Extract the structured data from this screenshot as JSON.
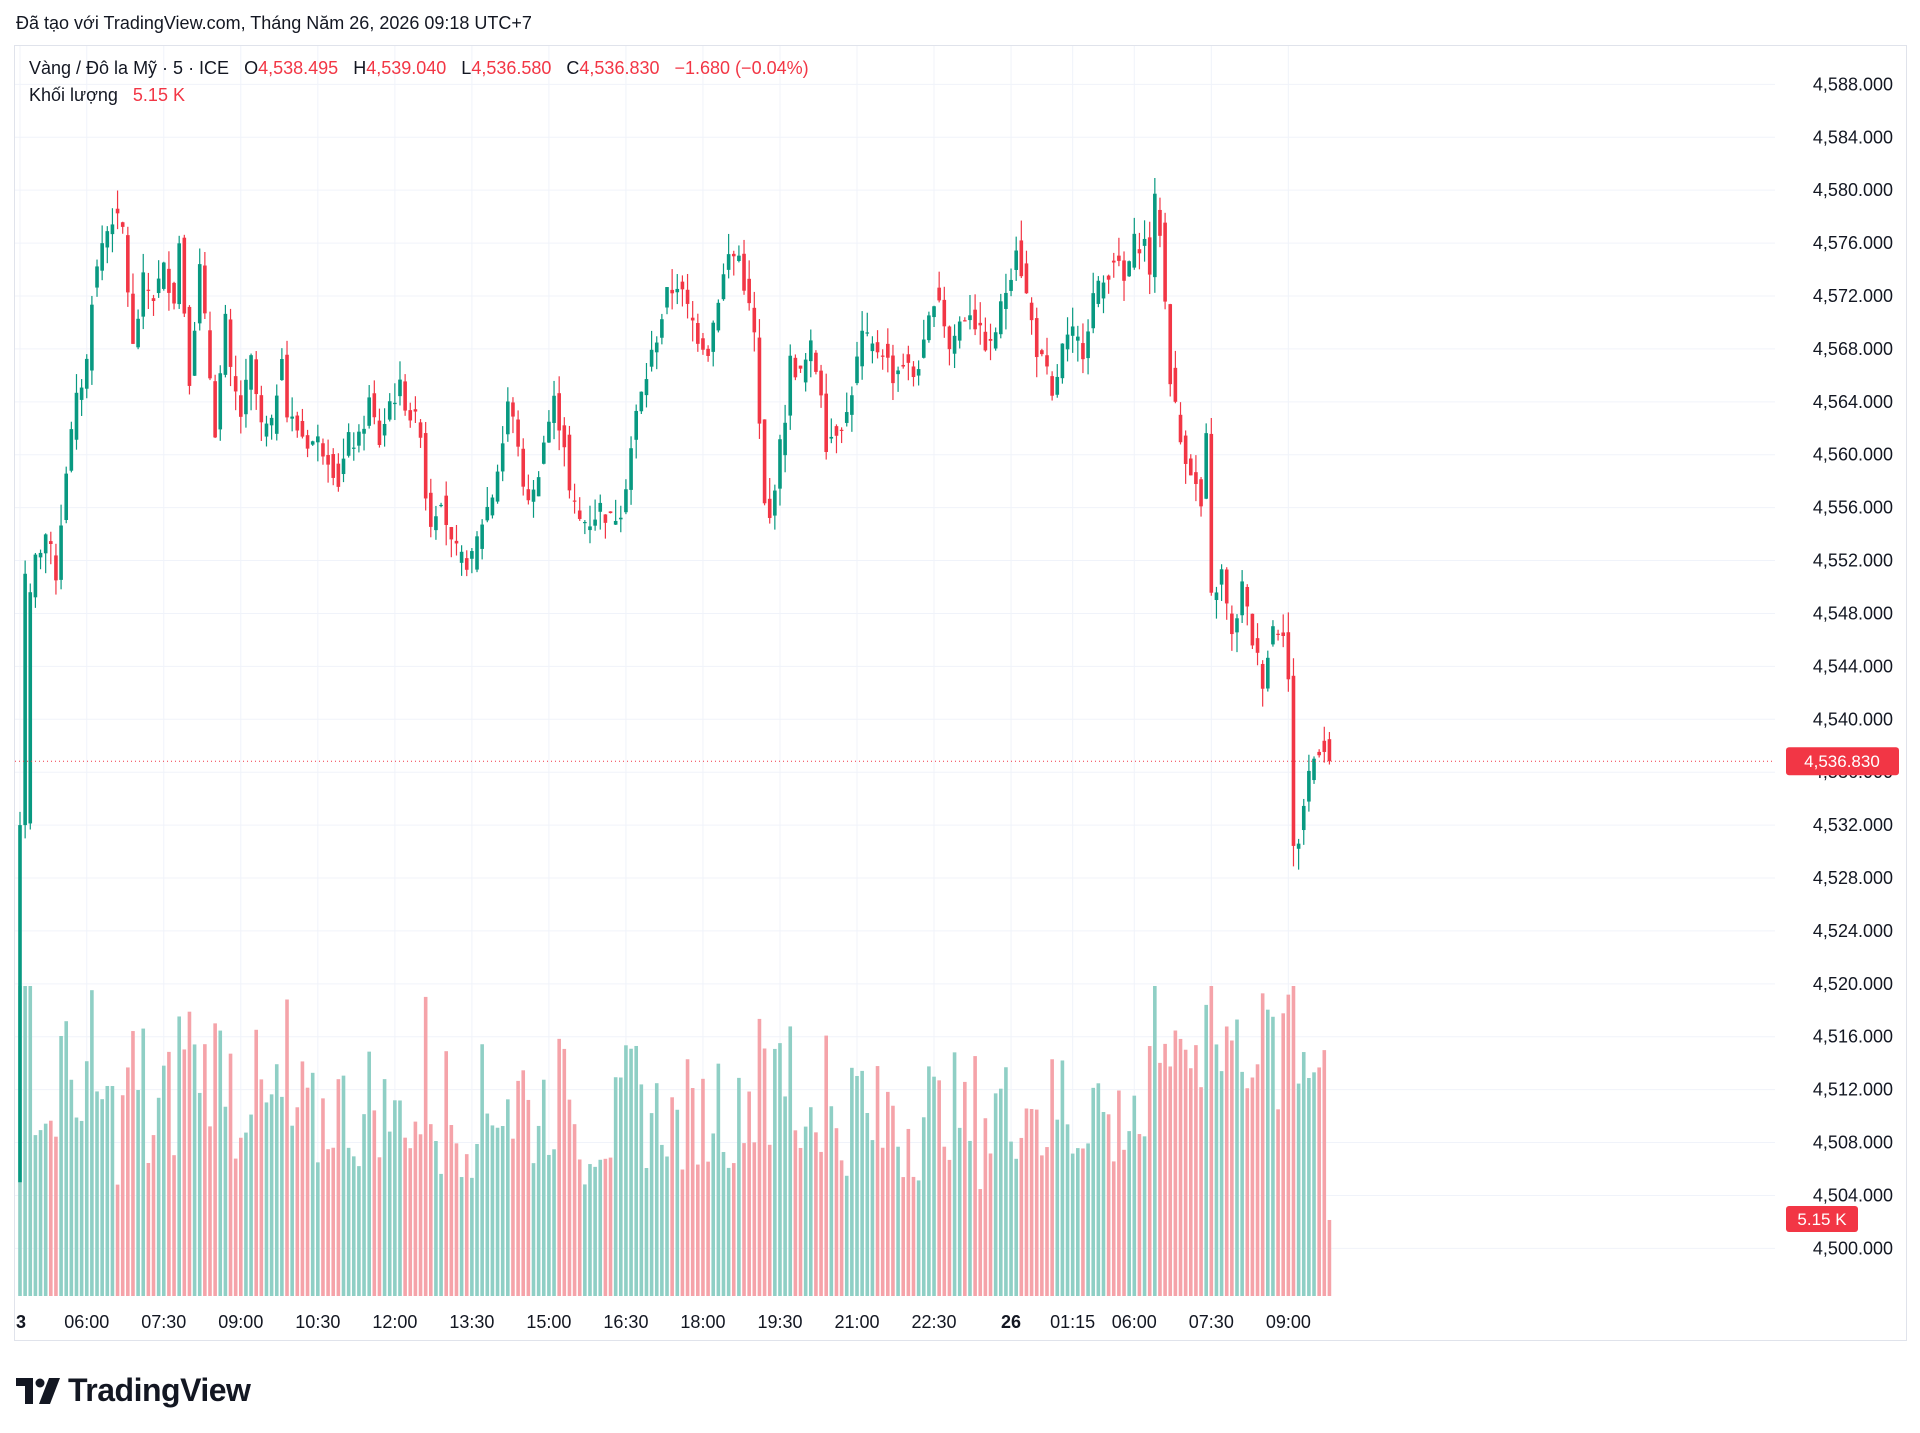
{
  "caption": "Đã tạo với TradingView.com, Tháng Năm 26, 2026 09:18 UTC+7",
  "legend": {
    "symbol": "Vàng / Đô la Mỹ · 5 · ICE",
    "o_label": "O",
    "o_value": "4,538.495",
    "h_label": "H",
    "h_value": "4,539.040",
    "l_label": "L",
    "l_value": "4,536.580",
    "c_label": "C",
    "c_value": "4,536.830",
    "change": "−1.680 (−0.04%)",
    "volume_label": "Khối lượng",
    "volume_value": "5.15 K"
  },
  "price_badge": "4,536.830",
  "volume_badge": "5.15 K",
  "logo_text": "TradingView",
  "colors": {
    "up": "#089981",
    "down": "#f23645",
    "up_vol": "#8fcfc5",
    "down_vol": "#f5a3a9",
    "grid": "#f0f3fa"
  },
  "chart_data": {
    "type": "candlestick",
    "title": "Vàng / Đô la Mỹ · 5 · ICE",
    "y_ticks": [
      "4,588.000",
      "4,584.000",
      "4,580.000",
      "4,576.000",
      "4,572.000",
      "4,568.000",
      "4,564.000",
      "4,560.000",
      "4,556.000",
      "4,552.000",
      "4,548.000",
      "4,544.000",
      "4,540.000",
      "4,536.000",
      "4,532.000",
      "4,528.000",
      "4,524.000",
      "4,520.000",
      "4,516.000",
      "4,512.000",
      "4,508.000",
      "4,504.000",
      "4,500.000"
    ],
    "y_tick_values": [
      4588,
      4584,
      4580,
      4576,
      4572,
      4568,
      4564,
      4560,
      4556,
      4552,
      4548,
      4544,
      4540,
      4536,
      4532,
      4528,
      4524,
      4520,
      4516,
      4512,
      4508,
      4504,
      4500
    ],
    "ylim": [
      4496.4,
      4590.9
    ],
    "x_ticks": [
      {
        "label": "3",
        "bold": true,
        "index": 0
      },
      {
        "label": "06:00",
        "bold": false,
        "index": 13
      },
      {
        "label": "07:30",
        "bold": false,
        "index": 28
      },
      {
        "label": "09:00",
        "bold": false,
        "index": 43
      },
      {
        "label": "10:30",
        "bold": false,
        "index": 58
      },
      {
        "label": "12:00",
        "bold": false,
        "index": 73
      },
      {
        "label": "13:30",
        "bold": false,
        "index": 88
      },
      {
        "label": "15:00",
        "bold": false,
        "index": 103
      },
      {
        "label": "16:30",
        "bold": false,
        "index": 118
      },
      {
        "label": "18:00",
        "bold": false,
        "index": 133
      },
      {
        "label": "19:30",
        "bold": false,
        "index": 148
      },
      {
        "label": "21:00",
        "bold": false,
        "index": 163
      },
      {
        "label": "22:30",
        "bold": false,
        "index": 178
      },
      {
        "label": "26",
        "bold": true,
        "index": 193
      },
      {
        "label": "01:15",
        "bold": false,
        "index": 205
      },
      {
        "label": "06:00",
        "bold": false,
        "index": 217
      },
      {
        "label": "07:30",
        "bold": false,
        "index": 232
      },
      {
        "label": "09:00",
        "bold": false,
        "index": 247
      }
    ],
    "last_price": 4536.83,
    "volume_max_k": 21.0,
    "keypoints": [
      [
        0,
        4505
      ],
      [
        1,
        4532
      ],
      [
        2,
        4549
      ],
      [
        3,
        4552
      ],
      [
        5,
        4554
      ],
      [
        7,
        4551
      ],
      [
        9,
        4559
      ],
      [
        11,
        4564
      ],
      [
        13,
        4567
      ],
      [
        14,
        4572
      ],
      [
        16,
        4576
      ],
      [
        18,
        4578
      ],
      [
        20,
        4577
      ],
      [
        22,
        4568
      ],
      [
        24,
        4573
      ],
      [
        26,
        4572
      ],
      [
        28,
        4574
      ],
      [
        30,
        4572
      ],
      [
        31,
        4576
      ],
      [
        33,
        4566
      ],
      [
        35,
        4574
      ],
      [
        36,
        4570
      ],
      [
        38,
        4562
      ],
      [
        40,
        4570
      ],
      [
        41,
        4566
      ],
      [
        43,
        4563
      ],
      [
        45,
        4567
      ],
      [
        47,
        4562
      ],
      [
        49,
        4562
      ],
      [
        51,
        4568
      ],
      [
        52,
        4563
      ],
      [
        54,
        4562
      ],
      [
        56,
        4561
      ],
      [
        58,
        4561
      ],
      [
        60,
        4560
      ],
      [
        62,
        4558
      ],
      [
        64,
        4561
      ],
      [
        66,
        4561
      ],
      [
        68,
        4564
      ],
      [
        70,
        4561
      ],
      [
        72,
        4564
      ],
      [
        74,
        4565
      ],
      [
        76,
        4563
      ],
      [
        78,
        4562
      ],
      [
        79,
        4557
      ],
      [
        80,
        4555
      ],
      [
        82,
        4557
      ],
      [
        84,
        4553
      ],
      [
        86,
        4552
      ],
      [
        88,
        4552
      ],
      [
        90,
        4555
      ],
      [
        92,
        4557
      ],
      [
        94,
        4561
      ],
      [
        95,
        4564
      ],
      [
        97,
        4561
      ],
      [
        98,
        4557
      ],
      [
        100,
        4557
      ],
      [
        102,
        4561
      ],
      [
        104,
        4564
      ],
      [
        106,
        4561
      ],
      [
        107,
        4557
      ],
      [
        109,
        4555
      ],
      [
        111,
        4555
      ],
      [
        113,
        4556
      ],
      [
        115,
        4555
      ],
      [
        117,
        4556
      ],
      [
        118,
        4558
      ],
      [
        120,
        4563
      ],
      [
        122,
        4566
      ],
      [
        124,
        4569
      ],
      [
        126,
        4572
      ],
      [
        128,
        4573
      ],
      [
        130,
        4571
      ],
      [
        132,
        4569
      ],
      [
        134,
        4568
      ],
      [
        136,
        4572
      ],
      [
        138,
        4575
      ],
      [
        140,
        4575
      ],
      [
        141,
        4573
      ],
      [
        143,
        4569
      ],
      [
        144,
        4562
      ],
      [
        145,
        4556
      ],
      [
        146,
        4555
      ],
      [
        147,
        4558
      ],
      [
        149,
        4563
      ],
      [
        150,
        4567
      ],
      [
        152,
        4566
      ],
      [
        154,
        4568
      ],
      [
        156,
        4565
      ],
      [
        157,
        4561
      ],
      [
        159,
        4562
      ],
      [
        161,
        4563
      ],
      [
        162,
        4565
      ],
      [
        164,
        4569
      ],
      [
        166,
        4568
      ],
      [
        168,
        4568
      ],
      [
        170,
        4566
      ],
      [
        172,
        4567
      ],
      [
        174,
        4566
      ],
      [
        176,
        4568
      ],
      [
        178,
        4572
      ],
      [
        179,
        4572
      ],
      [
        181,
        4568
      ],
      [
        183,
        4570
      ],
      [
        185,
        4571
      ],
      [
        187,
        4569
      ],
      [
        189,
        4568
      ],
      [
        191,
        4571
      ],
      [
        193,
        4574
      ],
      [
        194,
        4576
      ],
      [
        196,
        4572
      ],
      [
        198,
        4568
      ],
      [
        200,
        4566
      ],
      [
        201,
        4564
      ],
      [
        203,
        4568
      ],
      [
        205,
        4569
      ],
      [
        207,
        4568
      ],
      [
        209,
        4572
      ],
      [
        211,
        4573
      ],
      [
        213,
        4575
      ],
      [
        215,
        4573
      ],
      [
        217,
        4576
      ],
      [
        219,
        4576
      ],
      [
        220,
        4574
      ],
      [
        221,
        4579
      ],
      [
        222,
        4577
      ],
      [
        224,
        4566
      ],
      [
        226,
        4561
      ],
      [
        228,
        4559
      ],
      [
        230,
        4556
      ],
      [
        231,
        4561
      ],
      [
        232,
        4549
      ],
      [
        234,
        4551
      ],
      [
        236,
        4546
      ],
      [
        238,
        4550
      ],
      [
        240,
        4546
      ],
      [
        242,
        4543
      ],
      [
        244,
        4547
      ],
      [
        246,
        4547
      ],
      [
        247,
        4543
      ],
      [
        248,
        4530
      ],
      [
        249,
        4531
      ],
      [
        251,
        4536
      ],
      [
        253,
        4538
      ],
      [
        254,
        4538
      ],
      [
        255,
        4536.83
      ]
    ]
  }
}
